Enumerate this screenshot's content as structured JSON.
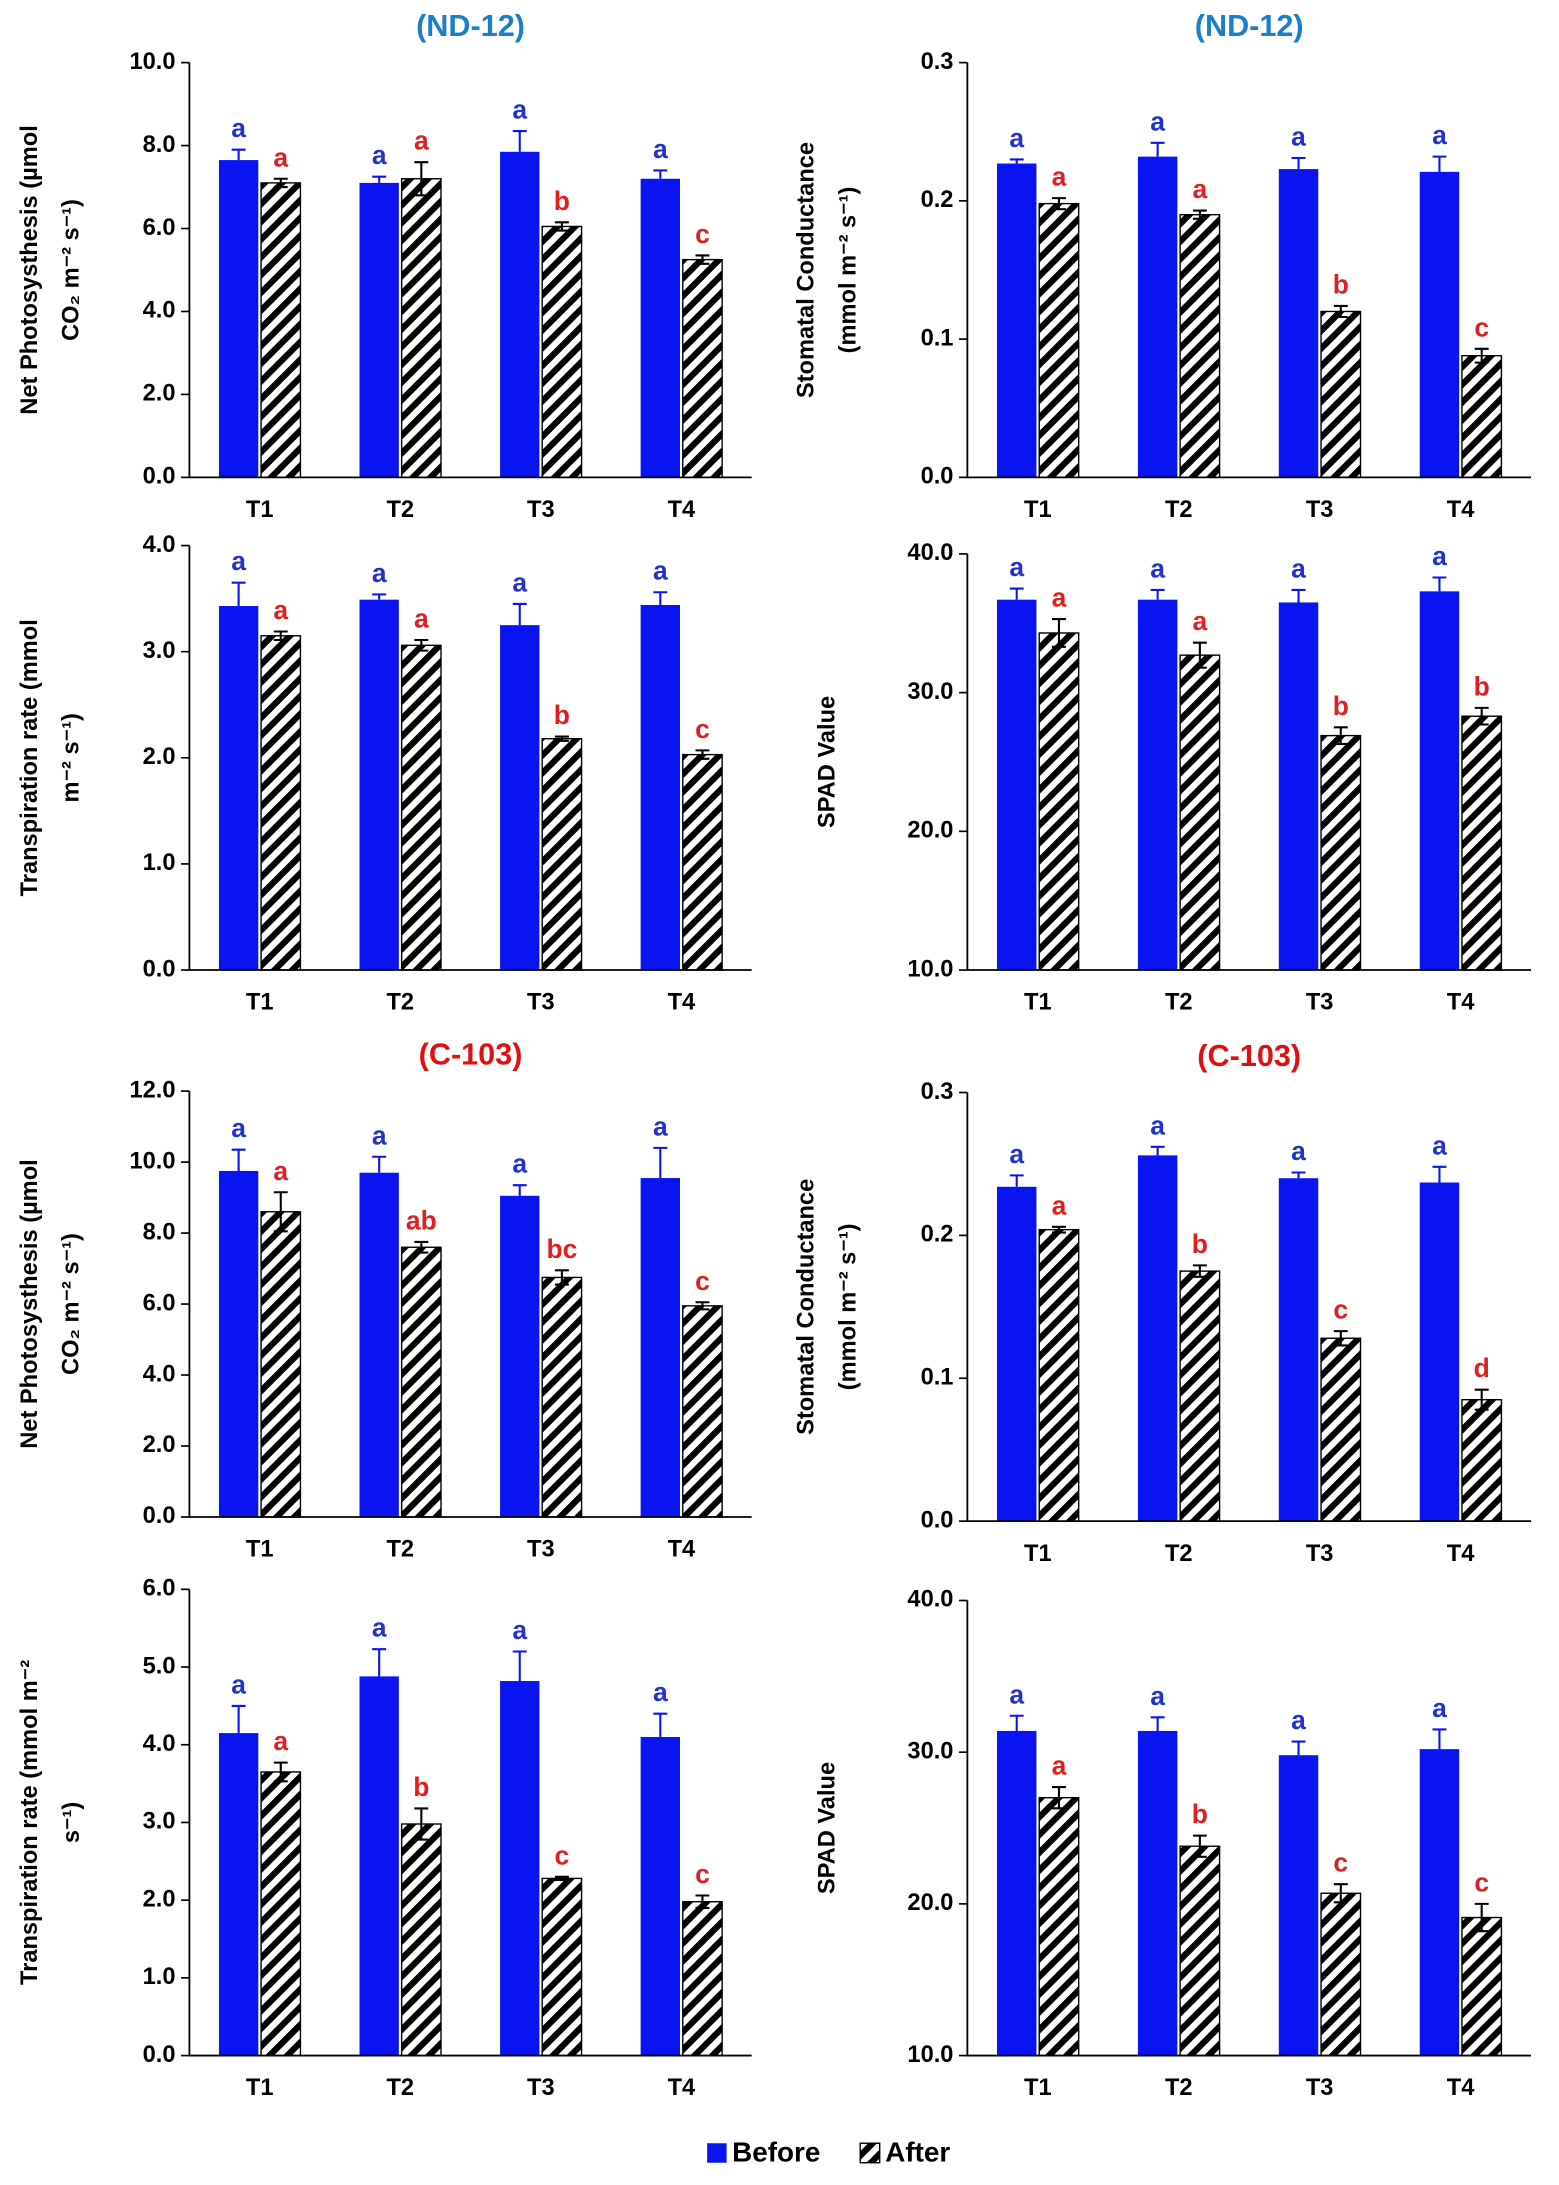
{
  "legend": [
    {
      "name": "Before",
      "color": "#0a14f0"
    },
    {
      "name": "After",
      "pattern": "hatch"
    }
  ],
  "chart_data": [
    {
      "type": "bar",
      "title": "(ND-12)",
      "title_color": "#1a7fc8",
      "ylabel": [
        "Net Photosysthesis (µmol",
        "CO₂ m⁻² s⁻¹)"
      ],
      "categories": [
        "T1",
        "T2",
        "T3",
        "T4"
      ],
      "series": [
        {
          "color": "#0a14f0",
          "label_color": "#2233cc",
          "values": [
            7.65,
            7.1,
            7.85,
            7.2
          ],
          "errors": [
            0.25,
            0.15,
            0.5,
            0.2
          ],
          "labels": [
            "a",
            "a",
            "a",
            "a"
          ]
        },
        {
          "pattern": "hatch",
          "label_color": "#e02020",
          "values": [
            7.1,
            7.2,
            6.05,
            5.25
          ],
          "errors": [
            0.1,
            0.4,
            0.1,
            0.1
          ],
          "labels": [
            "a",
            "a",
            "b",
            "c"
          ]
        }
      ],
      "ylim": [
        0,
        10
      ],
      "yticks": [
        {
          "value": 0,
          "label": "0.0"
        },
        {
          "value": 2,
          "label": "2.0"
        },
        {
          "value": 4,
          "label": "4.0"
        },
        {
          "value": 6,
          "label": "6.0"
        },
        {
          "value": 8,
          "label": "8.0"
        },
        {
          "value": 10,
          "label": "10.0"
        }
      ]
    },
    {
      "type": "bar",
      "title": "(ND-12)",
      "title_color": "#1a7fc8",
      "ylabel": [
        "Stomatal Conductance",
        "(mmol m⁻² s⁻¹)"
      ],
      "categories": [
        "T1",
        "T2",
        "T3",
        "T4"
      ],
      "series": [
        {
          "color": "#0a14f0",
          "label_color": "#2233cc",
          "values": [
            0.227,
            0.232,
            0.223,
            0.221
          ],
          "errors": [
            0.003,
            0.01,
            0.008,
            0.011
          ],
          "labels": [
            "a",
            "a",
            "a",
            "a"
          ]
        },
        {
          "pattern": "hatch",
          "label_color": "#e02020",
          "values": [
            0.198,
            0.19,
            0.12,
            0.088
          ],
          "errors": [
            0.004,
            0.003,
            0.004,
            0.005
          ],
          "labels": [
            "a",
            "a",
            "b",
            "c"
          ]
        }
      ],
      "ylim": [
        0,
        0.3
      ],
      "yticks": [
        {
          "value": 0,
          "label": "0.0"
        },
        0.1,
        0.2,
        0.3
      ]
    },
    {
      "type": "bar",
      "ylabel": [
        "Transpiration rate (mmol",
        "m⁻² s⁻¹)"
      ],
      "categories": [
        "T1",
        "T2",
        "T3",
        "T4"
      ],
      "series": [
        {
          "color": "#0a14f0",
          "label_color": "#2233cc",
          "values": [
            3.43,
            3.49,
            3.25,
            3.44
          ],
          "errors": [
            0.22,
            0.05,
            0.2,
            0.12
          ],
          "labels": [
            "a",
            "a",
            "a",
            "a"
          ]
        },
        {
          "pattern": "hatch",
          "label_color": "#e02020",
          "values": [
            3.15,
            3.06,
            2.18,
            2.03
          ],
          "errors": [
            0.04,
            0.05,
            0.02,
            0.04
          ],
          "labels": [
            "a",
            "a",
            "b",
            "c"
          ]
        }
      ],
      "ylim": [
        0,
        4
      ],
      "yticks": [
        {
          "value": 0,
          "label": "0.0"
        },
        {
          "value": 1,
          "label": "1.0"
        },
        {
          "value": 2,
          "label": "2.0"
        },
        {
          "value": 3,
          "label": "3.0"
        },
        {
          "value": 4,
          "label": "4.0"
        }
      ]
    },
    {
      "type": "bar",
      "ylabel": [
        "SPAD Value"
      ],
      "categories": [
        "T1",
        "T2",
        "T3",
        "T4"
      ],
      "series": [
        {
          "color": "#0a14f0",
          "label_color": "#2233cc",
          "values": [
            36.7,
            36.7,
            36.5,
            37.3
          ],
          "errors": [
            0.8,
            0.7,
            0.9,
            1.0
          ],
          "labels": [
            "a",
            "a",
            "a",
            "a"
          ]
        },
        {
          "pattern": "hatch",
          "label_color": "#e02020",
          "values": [
            34.3,
            32.7,
            26.9,
            28.3
          ],
          "errors": [
            1.0,
            0.9,
            0.6,
            0.6
          ],
          "labels": [
            "a",
            "a",
            "b",
            "b"
          ]
        }
      ],
      "ylim": [
        10,
        40
      ],
      "yticks": [
        {
          "value": 10,
          "label": "10.0"
        },
        {
          "value": 20,
          "label": "20.0"
        },
        {
          "value": 30,
          "label": "30.0"
        },
        {
          "value": 40,
          "label": "40.0"
        }
      ]
    },
    {
      "type": "bar",
      "title": "(C-103)",
      "title_color": "#e01010",
      "ylabel": [
        "Net Photosysthesis (µmol",
        "CO₂ m⁻² s⁻¹)"
      ],
      "categories": [
        "T1",
        "T2",
        "T3",
        "T4"
      ],
      "series": [
        {
          "color": "#0a14f0",
          "label_color": "#2233cc",
          "values": [
            9.75,
            9.7,
            9.05,
            9.55
          ],
          "errors": [
            0.6,
            0.45,
            0.3,
            0.85
          ],
          "labels": [
            "a",
            "a",
            "a",
            "a"
          ]
        },
        {
          "pattern": "hatch",
          "label_color": "#e02020",
          "values": [
            8.6,
            7.6,
            6.75,
            5.95
          ],
          "errors": [
            0.55,
            0.15,
            0.2,
            0.1
          ],
          "labels": [
            "a",
            "ab",
            "bc",
            "c"
          ]
        }
      ],
      "ylim": [
        0,
        12
      ],
      "yticks": [
        {
          "value": 0,
          "label": "0.0"
        },
        {
          "value": 2,
          "label": "2.0"
        },
        {
          "value": 4,
          "label": "4.0"
        },
        {
          "value": 6,
          "label": "6.0"
        },
        {
          "value": 8,
          "label": "8.0"
        },
        {
          "value": 10,
          "label": "10.0"
        },
        {
          "value": 12,
          "label": "12.0"
        }
      ]
    },
    {
      "type": "bar",
      "title": "(C-103)",
      "title_color": "#e01010",
      "ylabel": [
        "Stomatal Conductance",
        "(mmol m⁻² s⁻¹)"
      ],
      "categories": [
        "T1",
        "T2",
        "T3",
        "T4"
      ],
      "series": [
        {
          "color": "#0a14f0",
          "label_color": "#2233cc",
          "values": [
            0.234,
            0.256,
            0.24,
            0.237
          ],
          "errors": [
            0.008,
            0.006,
            0.004,
            0.011
          ],
          "labels": [
            "a",
            "a",
            "a",
            "a"
          ]
        },
        {
          "pattern": "hatch",
          "label_color": "#e02020",
          "values": [
            0.204,
            0.175,
            0.128,
            0.085
          ],
          "errors": [
            0.002,
            0.004,
            0.005,
            0.007
          ],
          "labels": [
            "a",
            "b",
            "c",
            "d"
          ]
        }
      ],
      "ylim": [
        0,
        0.3
      ],
      "yticks": [
        {
          "value": 0,
          "label": "0.0"
        },
        0.1,
        0.2,
        0.3
      ]
    },
    {
      "type": "bar",
      "ylabel": [
        "Transpiration rate (mmol m⁻²",
        "s⁻¹)"
      ],
      "categories": [
        "T1",
        "T2",
        "T3",
        "T4"
      ],
      "series": [
        {
          "color": "#0a14f0",
          "label_color": "#2233cc",
          "values": [
            4.15,
            4.88,
            4.82,
            4.1
          ],
          "errors": [
            0.35,
            0.35,
            0.38,
            0.3
          ],
          "labels": [
            "a",
            "a",
            "a",
            "a"
          ]
        },
        {
          "pattern": "hatch",
          "label_color": "#e02020",
          "values": [
            3.65,
            2.98,
            2.28,
            1.98
          ],
          "errors": [
            0.12,
            0.2,
            0.02,
            0.08
          ],
          "labels": [
            "a",
            "b",
            "c",
            "c"
          ]
        }
      ],
      "ylim": [
        0,
        6
      ],
      "yticks": [
        {
          "value": 0,
          "label": "0.0"
        },
        {
          "value": 1,
          "label": "1.0"
        },
        {
          "value": 2,
          "label": "2.0"
        },
        {
          "value": 3,
          "label": "3.0"
        },
        {
          "value": 4,
          "label": "4.0"
        },
        {
          "value": 5,
          "label": "5.0"
        },
        {
          "value": 6,
          "label": "6.0"
        }
      ]
    },
    {
      "type": "bar",
      "ylabel": [
        "SPAD Value"
      ],
      "categories": [
        "T1",
        "T2",
        "T3",
        "T4"
      ],
      "series": [
        {
          "color": "#0a14f0",
          "label_color": "#2233cc",
          "values": [
            31.4,
            31.4,
            29.8,
            30.2
          ],
          "errors": [
            1.0,
            0.9,
            0.9,
            1.3
          ],
          "labels": [
            "a",
            "a",
            "a",
            "a"
          ]
        },
        {
          "pattern": "hatch",
          "label_color": "#e02020",
          "values": [
            27.0,
            23.8,
            20.7,
            19.1
          ],
          "errors": [
            0.7,
            0.7,
            0.6,
            0.9
          ],
          "labels": [
            "a",
            "b",
            "c",
            "c"
          ]
        }
      ],
      "ylim": [
        10,
        40
      ],
      "yticks": [
        {
          "value": 10,
          "label": "10.0"
        },
        {
          "value": 20,
          "label": "20.0"
        },
        {
          "value": 30,
          "label": "30.0"
        },
        {
          "value": 40,
          "label": "40.0"
        }
      ]
    }
  ]
}
